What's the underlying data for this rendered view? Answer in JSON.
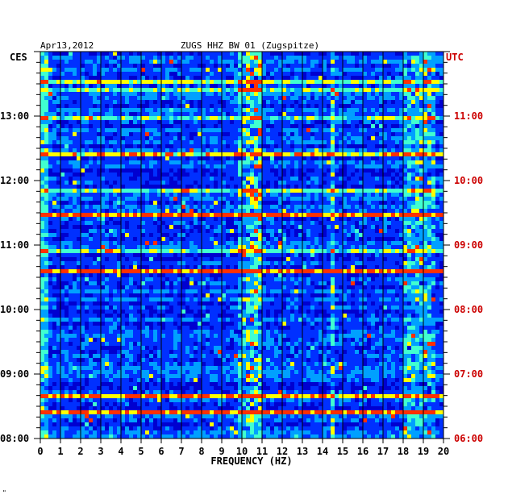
{
  "chart_data": {
    "type": "heatmap",
    "date": "Apr13,2012",
    "title": "ZUGS HHZ BW 01 (Zugspitze)",
    "xlabel": "FREQUENCY (HZ)",
    "xlim": [
      0,
      20
    ],
    "x_ticks": [
      "0",
      "1",
      "2",
      "3",
      "4",
      "5",
      "6",
      "7",
      "8",
      "9",
      "10",
      "11",
      "12",
      "13",
      "14",
      "15",
      "16",
      "17",
      "18",
      "19",
      "20"
    ],
    "left_axis": {
      "label": "CES",
      "ylim_hours": [
        8,
        14
      ],
      "ticks": [
        {
          "hour": 8,
          "label": "08:00"
        },
        {
          "hour": 9,
          "label": "09:00"
        },
        {
          "hour": 10,
          "label": "10:00"
        },
        {
          "hour": 11,
          "label": "11:00"
        },
        {
          "hour": 12,
          "label": "12:00"
        },
        {
          "hour": 13,
          "label": "13:00"
        }
      ]
    },
    "right_axis": {
      "label": "UTC",
      "ticks": [
        {
          "hour": 8,
          "label": "06:00"
        },
        {
          "hour": 9,
          "label": "07:00"
        },
        {
          "hour": 10,
          "label": "08:00"
        },
        {
          "hour": 11,
          "label": "09:00"
        },
        {
          "hour": 12,
          "label": "10:00"
        },
        {
          "hour": 13,
          "label": "11:00"
        }
      ]
    },
    "colormap": [
      "#000066",
      "#0000d0",
      "#0030ff",
      "#00a0ff",
      "#40ffd0",
      "#ffff00",
      "#ff3000"
    ],
    "energy_bands_hz": [
      {
        "from": 9.9,
        "to": 10.1,
        "level": 0.3
      },
      {
        "from": 10.2,
        "to": 11.0,
        "level": 0.45
      },
      {
        "from": 14.3,
        "to": 14.6,
        "level": 0.4
      },
      {
        "from": 18.0,
        "to": 19.5,
        "level": 0.3
      }
    ],
    "colors": {
      "ces_label": "#000000",
      "utc_label": "#cc0000",
      "grid": "#000000",
      "background": "#00008c"
    }
  },
  "footer_mark": "\""
}
